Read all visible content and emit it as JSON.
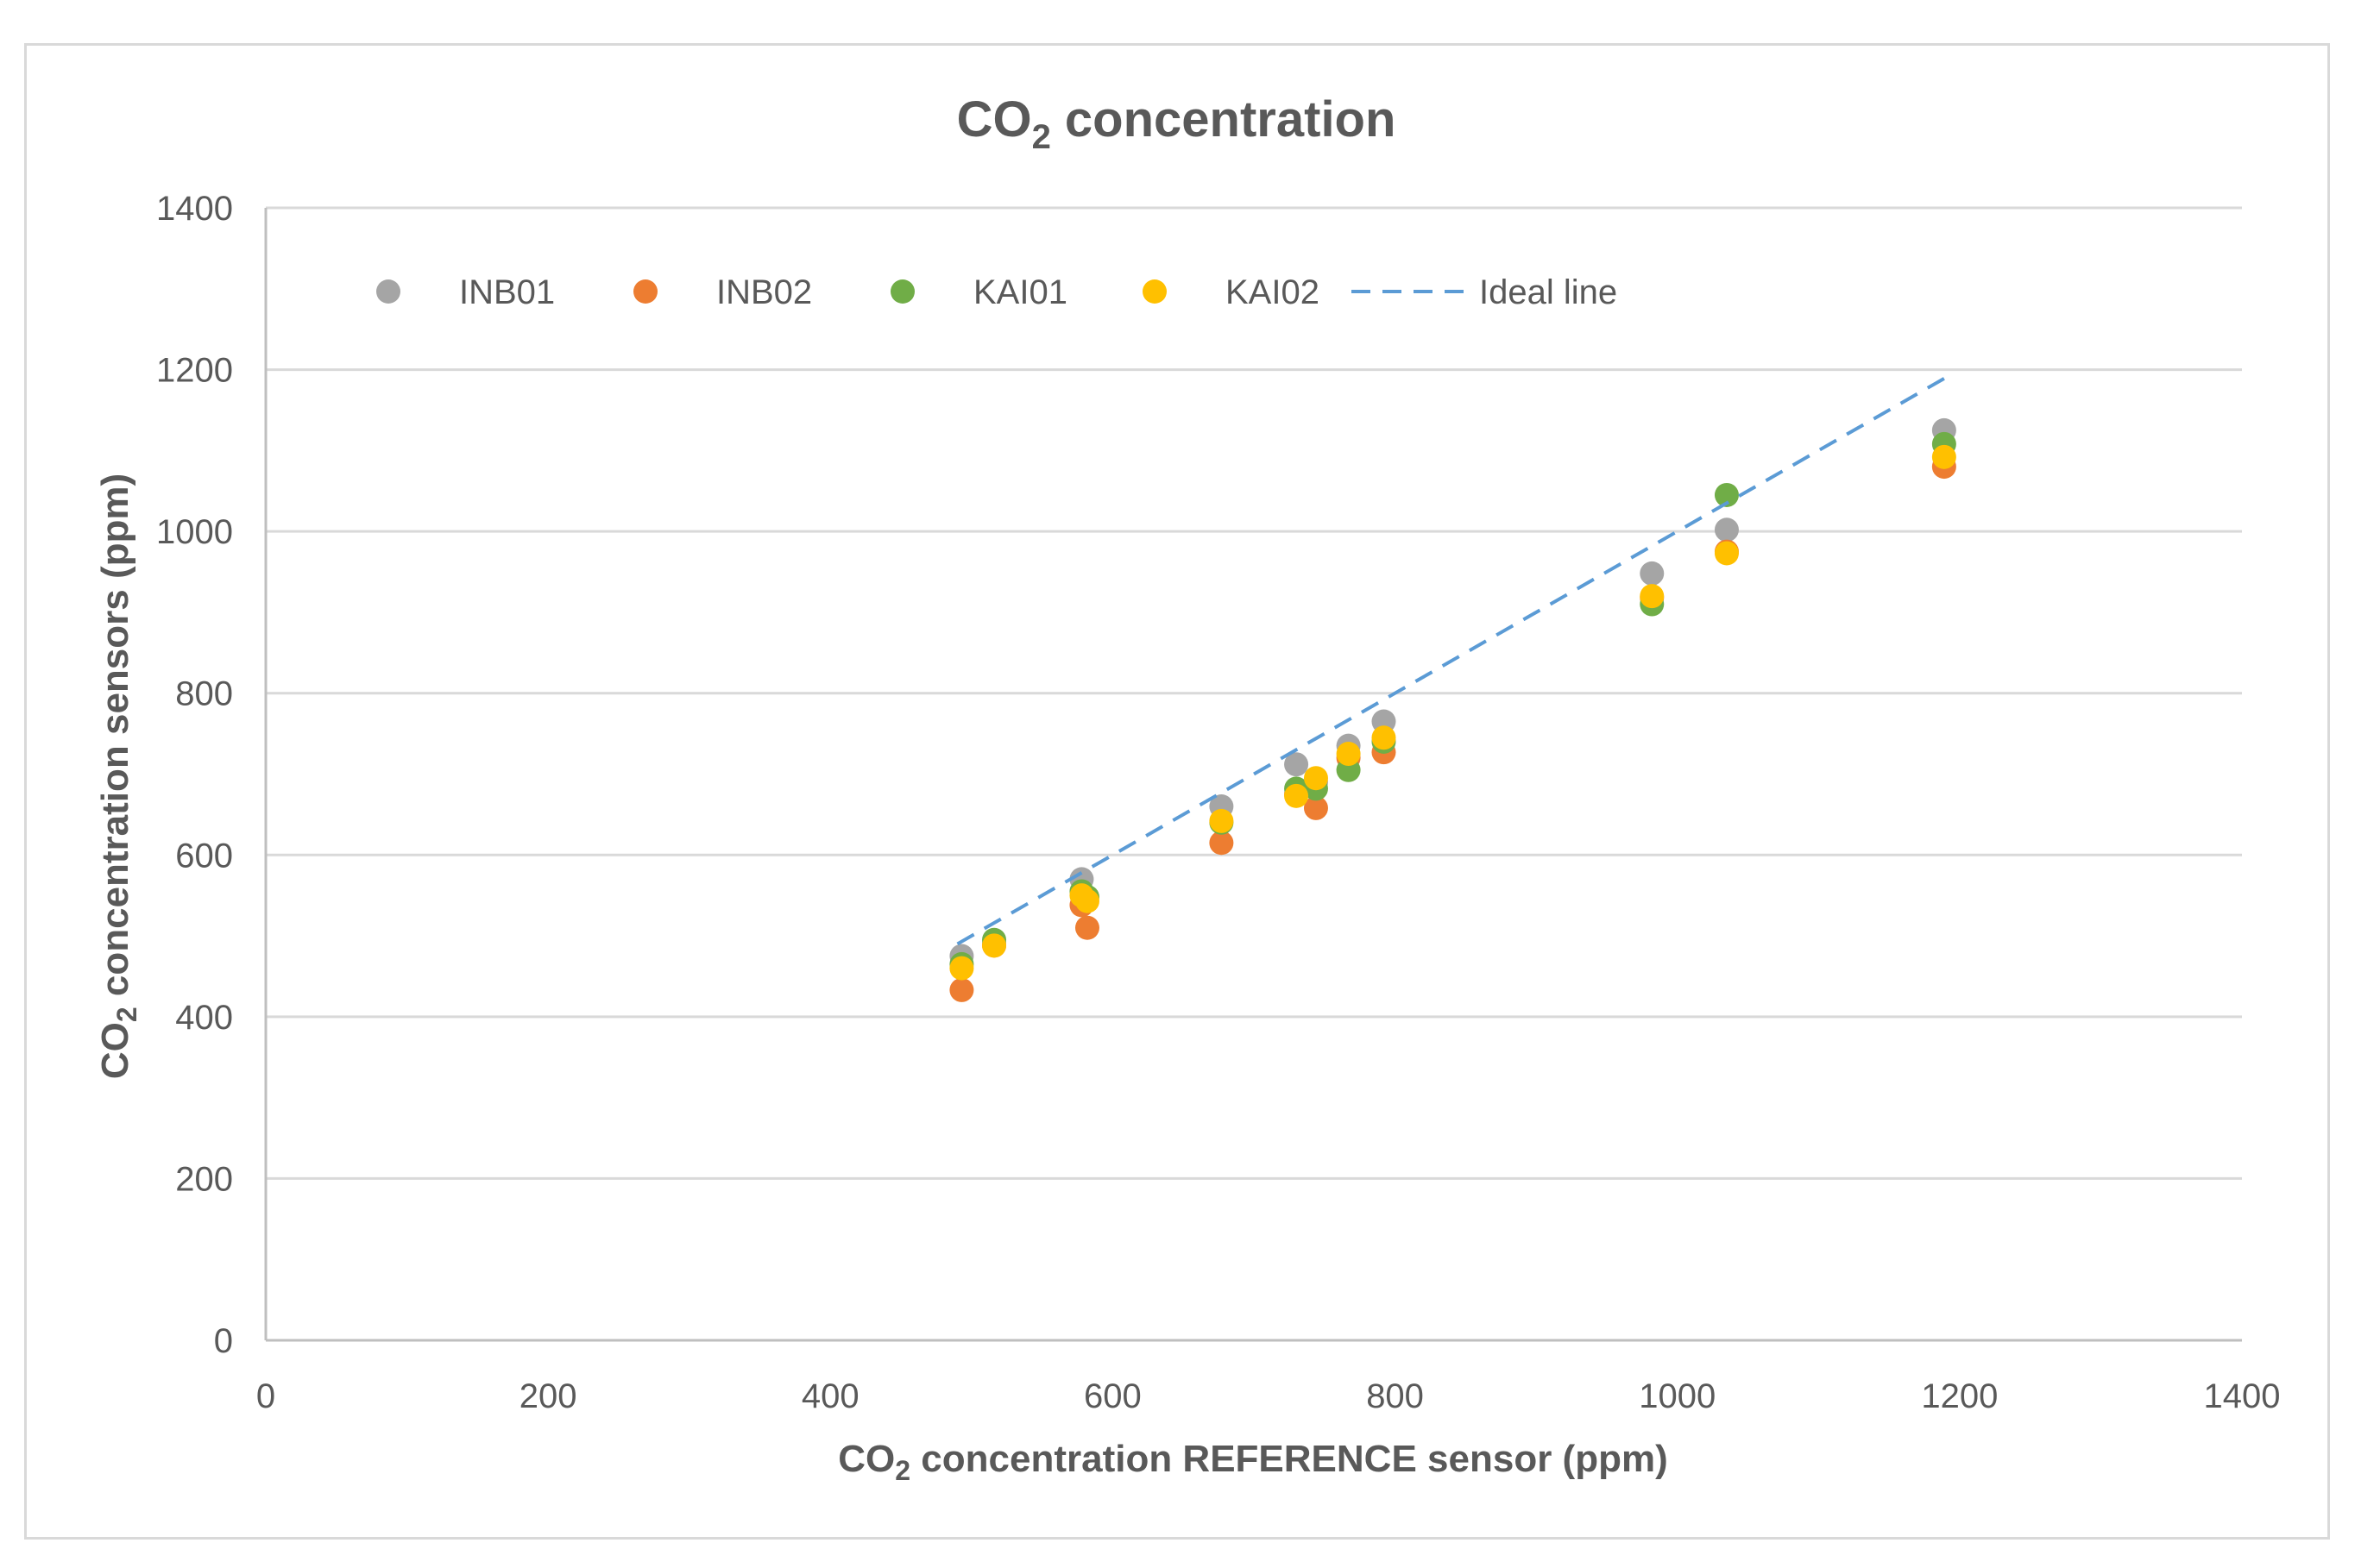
{
  "chart_data": {
    "type": "scatter",
    "title": {
      "main": "CO",
      "sub": "2",
      "rest": " concentration"
    },
    "xlabel": {
      "main": "CO",
      "sub": "2",
      "rest": " concentration  REFERENCE sensor (ppm)"
    },
    "ylabel": {
      "main": "CO",
      "sub": "2",
      "rest": " concentration sensors (ppm)"
    },
    "xlim": [
      0,
      1400
    ],
    "ylim": [
      0,
      1400
    ],
    "xticks": [
      0,
      200,
      400,
      600,
      800,
      1000,
      1200,
      1400
    ],
    "yticks": [
      0,
      200,
      400,
      600,
      800,
      1000,
      1200,
      1400
    ],
    "grid": "horizontal",
    "legend_position": "top-left",
    "series": [
      {
        "name": "INB01",
        "color": "#a5a5a5",
        "kind": "points",
        "x": [
          493,
          516,
          578,
          580,
          677,
          730,
          744,
          767,
          792,
          982,
          1035,
          1189
        ],
        "y": [
          475,
          490,
          570,
          550,
          660,
          712,
          690,
          735,
          765,
          948,
          1002,
          1125
        ]
      },
      {
        "name": "INB02",
        "color": "#ed7d31",
        "kind": "points",
        "x": [
          493,
          516,
          578,
          582,
          677,
          730,
          744,
          767,
          792,
          982,
          1035,
          1189
        ],
        "y": [
          433,
          488,
          538,
          510,
          615,
          675,
          658,
          720,
          727,
          918,
          975,
          1080
        ]
      },
      {
        "name": "KAI01",
        "color": "#70ad47",
        "kind": "points",
        "x": [
          493,
          516,
          578,
          582,
          677,
          730,
          744,
          767,
          792,
          982,
          1035,
          1189
        ],
        "y": [
          465,
          495,
          555,
          548,
          640,
          682,
          682,
          705,
          740,
          910,
          1045,
          1108
        ]
      },
      {
        "name": "KAI02",
        "color": "#ffc000",
        "kind": "points",
        "x": [
          493,
          516,
          578,
          582,
          677,
          730,
          744,
          767,
          792,
          982,
          1035,
          1189
        ],
        "y": [
          460,
          488,
          550,
          543,
          642,
          673,
          695,
          725,
          745,
          920,
          973,
          1092
        ]
      },
      {
        "name": "Ideal line",
        "color": "#5b9bd5",
        "kind": "dashed-line",
        "x": [
          490,
          1190
        ],
        "y": [
          490,
          1190
        ]
      }
    ]
  }
}
